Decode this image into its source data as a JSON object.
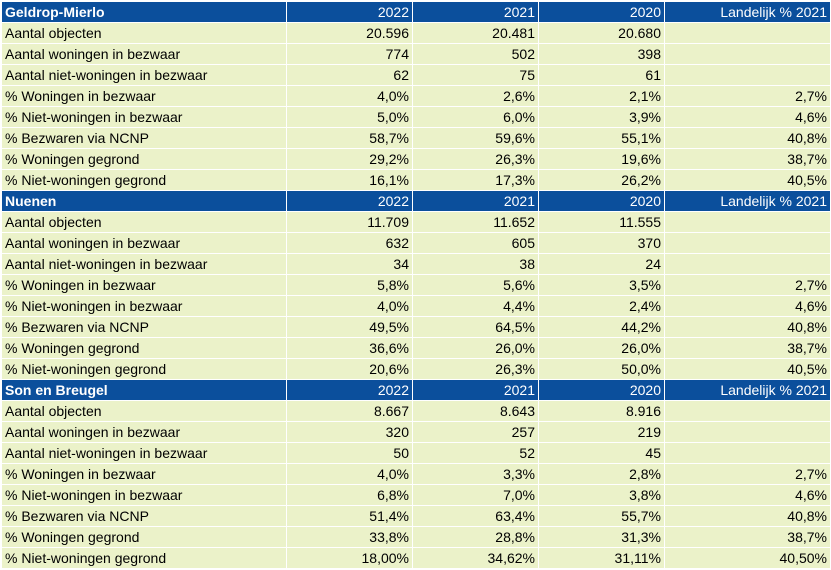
{
  "column_headers": [
    "2022",
    "2021",
    "2020",
    "Landelijk % 2021"
  ],
  "sections": [
    {
      "name": "Geldrop-Mierlo",
      "rows": [
        {
          "label": "Aantal objecten",
          "values": [
            "20.596",
            "20.481",
            "20.680",
            ""
          ]
        },
        {
          "label": "Aantal woningen in bezwaar",
          "values": [
            "774",
            "502",
            "398",
            ""
          ]
        },
        {
          "label": "Aantal niet-woningen in bezwaar",
          "values": [
            "62",
            "75",
            "61",
            ""
          ]
        },
        {
          "label": "% Woningen in bezwaar",
          "values": [
            "4,0%",
            "2,6%",
            "2,1%",
            "2,7%"
          ]
        },
        {
          "label": "% Niet-woningen in bezwaar",
          "values": [
            "5,0%",
            "6,0%",
            "3,9%",
            "4,6%"
          ]
        },
        {
          "label": "% Bezwaren via NCNP",
          "values": [
            "58,7%",
            "59,6%",
            "55,1%",
            "40,8%"
          ]
        },
        {
          "label": "% Woningen gegrond",
          "values": [
            "29,2%",
            "26,3%",
            "19,6%",
            "38,7%"
          ]
        },
        {
          "label": "% Niet-woningen gegrond",
          "values": [
            "16,1%",
            "17,3%",
            "26,2%",
            "40,5%"
          ]
        }
      ]
    },
    {
      "name": "Nuenen",
      "rows": [
        {
          "label": "Aantal objecten",
          "values": [
            "11.709",
            "11.652",
            "11.555",
            ""
          ]
        },
        {
          "label": "Aantal woningen in bezwaar",
          "values": [
            "632",
            "605",
            "370",
            ""
          ]
        },
        {
          "label": "Aantal niet-woningen in bezwaar",
          "values": [
            "34",
            "38",
            "24",
            ""
          ]
        },
        {
          "label": "% Woningen in bezwaar",
          "values": [
            "5,8%",
            "5,6%",
            "3,5%",
            "2,7%"
          ]
        },
        {
          "label": "% Niet-woningen in bezwaar",
          "values": [
            "4,0%",
            "4,4%",
            "2,4%",
            "4,6%"
          ]
        },
        {
          "label": "% Bezwaren via NCNP",
          "values": [
            "49,5%",
            "64,5%",
            "44,2%",
            "40,8%"
          ]
        },
        {
          "label": "% Woningen gegrond",
          "values": [
            "36,6%",
            "26,0%",
            "26,0%",
            "38,7%"
          ]
        },
        {
          "label": "% Niet-woningen gegrond",
          "values": [
            "20,6%",
            "26,3%",
            "50,0%",
            "40,5%"
          ]
        }
      ]
    },
    {
      "name": "Son en Breugel",
      "rows": [
        {
          "label": "Aantal objecten",
          "values": [
            "8.667",
            "8.643",
            "8.916",
            ""
          ]
        },
        {
          "label": "Aantal woningen in bezwaar",
          "values": [
            "320",
            "257",
            "219",
            ""
          ]
        },
        {
          "label": "Aantal niet-woningen in bezwaar",
          "values": [
            "50",
            "52",
            "45",
            ""
          ]
        },
        {
          "label": "% Woningen in bezwaar",
          "values": [
            "4,0%",
            "3,3%",
            "2,8%",
            "2,7%"
          ]
        },
        {
          "label": "% Niet-woningen in bezwaar",
          "values": [
            "6,8%",
            "7,0%",
            "3,8%",
            "4,6%"
          ]
        },
        {
          "label": "% Bezwaren via NCNP",
          "values": [
            "51,4%",
            "63,4%",
            "55,7%",
            "40,8%"
          ]
        },
        {
          "label": "% Woningen gegrond",
          "values": [
            "33,8%",
            "28,8%",
            "31,3%",
            "38,7%"
          ]
        },
        {
          "label": "% Niet-woningen gegrond",
          "values": [
            "18,00%",
            "34,62%",
            "31,11%",
            "40,50%"
          ]
        }
      ]
    }
  ],
  "colors": {
    "header_bg": "#0b4f9c",
    "header_text": "#ffffff",
    "row_bg": "#ebf2c9"
  }
}
